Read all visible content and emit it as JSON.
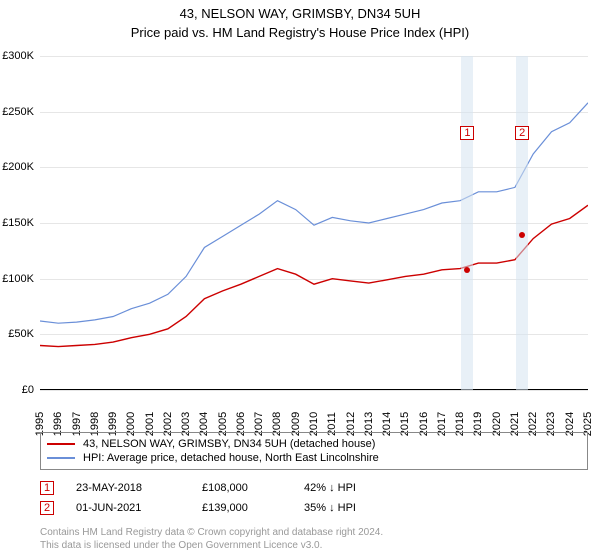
{
  "title": "43, NELSON WAY, GRIMSBY, DN34 5UH",
  "subtitle": "Price paid vs. HM Land Registry's House Price Index (HPI)",
  "chart": {
    "type": "line",
    "x_years": [
      1995,
      1996,
      1997,
      1998,
      1999,
      2000,
      2001,
      2002,
      2003,
      2004,
      2005,
      2006,
      2007,
      2008,
      2009,
      2010,
      2011,
      2012,
      2013,
      2014,
      2015,
      2016,
      2017,
      2018,
      2019,
      2020,
      2021,
      2022,
      2023,
      2024,
      2025
    ],
    "ylim": [
      0,
      300000
    ],
    "ytick_step": 50000,
    "ytick_labels": [
      "£0",
      "£50K",
      "£100K",
      "£150K",
      "£200K",
      "£250K",
      "£300K"
    ],
    "background_color": "#ffffff",
    "grid_color": "#e6e6e6",
    "series": [
      {
        "id": "hpi",
        "label": "HPI: Average price, detached house, North East Lincolnshire",
        "color": "#6a8fd8",
        "line_width": 1.2,
        "values": [
          62000,
          60000,
          61000,
          63000,
          66000,
          73000,
          78000,
          86000,
          102000,
          128000,
          138000,
          148000,
          158000,
          170000,
          162000,
          148000,
          155000,
          152000,
          150000,
          154000,
          158000,
          162000,
          168000,
          170000,
          178000,
          178000,
          182000,
          212000,
          232000,
          240000,
          258000
        ]
      },
      {
        "id": "property",
        "label": "43, NELSON WAY, GRIMSBY, DN34 5UH (detached house)",
        "color": "#cc0000",
        "line_width": 1.4,
        "values": [
          40000,
          39000,
          40000,
          41000,
          43000,
          47000,
          50000,
          55000,
          66000,
          82000,
          89000,
          95000,
          102000,
          109000,
          104000,
          95000,
          100000,
          98000,
          96000,
          99000,
          102000,
          104000,
          108000,
          109000,
          114000,
          114000,
          117000,
          136000,
          149000,
          154000,
          166000
        ]
      }
    ],
    "sale_markers": [
      {
        "n": "1",
        "year": 2018.4,
        "value": 108000,
        "color": "#cc0000",
        "label_y_top": 70
      },
      {
        "n": "2",
        "year": 2021.4,
        "value": 139000,
        "color": "#cc0000",
        "label_y_top": 70
      }
    ]
  },
  "legend": {
    "items": [
      {
        "color": "#cc0000",
        "text": "43, NELSON WAY, GRIMSBY, DN34 5UH (detached house)"
      },
      {
        "color": "#6a8fd8",
        "text": "HPI: Average price, detached house, North East Lincolnshire"
      }
    ]
  },
  "price_rows": [
    {
      "n": "1",
      "color": "#cc0000",
      "date": "23-MAY-2018",
      "price": "£108,000",
      "diff": "42% ↓ HPI"
    },
    {
      "n": "2",
      "color": "#cc0000",
      "date": "01-JUN-2021",
      "price": "£139,000",
      "diff": "35% ↓ HPI"
    }
  ],
  "footnote_l1": "Contains HM Land Registry data © Crown copyright and database right 2024.",
  "footnote_l2": "This data is licensed under the Open Government Licence v3.0."
}
